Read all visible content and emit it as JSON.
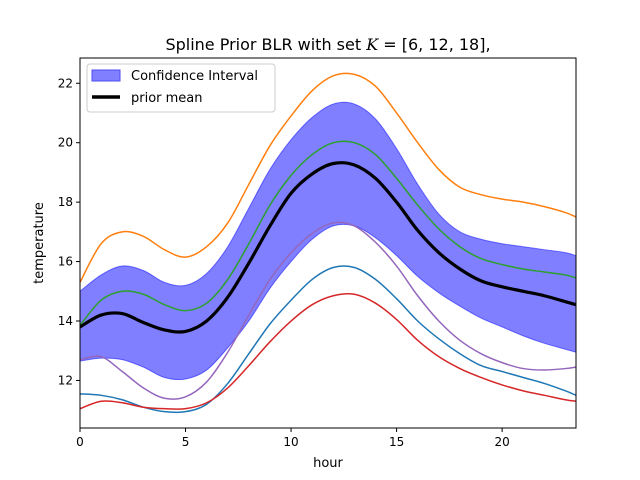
{
  "chart_data": {
    "type": "line",
    "title": "Spline Prior BLR with set K = [6, 12, 18],",
    "title_parts": {
      "prefix": "Spline Prior BLR with set ",
      "math": "K",
      "suffix": " = [6, 12, 18],"
    },
    "xlabel": "hour",
    "ylabel": "temperature",
    "xlim": [
      0,
      23.5
    ],
    "ylim": [
      10.4,
      22.85
    ],
    "xticks": [
      0,
      5,
      10,
      15,
      20
    ],
    "yticks": [
      12,
      14,
      16,
      18,
      20,
      22
    ],
    "grid": false,
    "legend": {
      "placement": "upper-left",
      "entries": [
        {
          "label": "Confidence Interval",
          "kind": "patch",
          "color": "#7f7fff",
          "edge": "#4d4df2"
        },
        {
          "label": "prior mean",
          "kind": "line",
          "color": "#000000"
        }
      ]
    },
    "band": {
      "name": "Confidence Interval",
      "color": "#0000ff",
      "alpha": 0.5,
      "x": [
        0,
        1,
        2,
        3,
        4,
        5,
        6,
        7,
        8,
        9,
        10,
        11,
        12,
        13,
        14,
        15,
        16,
        17,
        18,
        19,
        20,
        21,
        22,
        23,
        23.5
      ],
      "lower": [
        12.65,
        12.75,
        12.7,
        12.45,
        12.1,
        12.05,
        12.35,
        13.1,
        14.0,
        15.1,
        16.0,
        16.75,
        17.2,
        17.2,
        16.8,
        16.2,
        15.5,
        14.95,
        14.5,
        14.1,
        13.8,
        13.5,
        13.25,
        13.05,
        12.95
      ],
      "upper": [
        15.0,
        15.55,
        15.85,
        15.7,
        15.3,
        15.2,
        15.6,
        16.5,
        17.8,
        19.1,
        20.1,
        20.85,
        21.3,
        21.3,
        20.8,
        19.8,
        18.6,
        17.6,
        17.0,
        16.75,
        16.6,
        16.5,
        16.4,
        16.3,
        16.2
      ]
    },
    "series": [
      {
        "color": "#ff7f0e",
        "width": 1.5,
        "x": [
          0,
          1,
          2,
          3,
          4,
          5,
          6,
          7,
          8,
          9,
          10,
          11,
          12,
          13,
          14,
          15,
          16,
          17,
          18,
          19,
          20,
          21,
          22,
          23,
          23.5
        ],
        "values": [
          15.3,
          16.6,
          17.0,
          16.85,
          16.4,
          16.15,
          16.5,
          17.3,
          18.6,
          19.9,
          20.9,
          21.75,
          22.25,
          22.3,
          21.9,
          21.0,
          20.0,
          19.1,
          18.5,
          18.25,
          18.1,
          18.0,
          17.85,
          17.65,
          17.5
        ]
      },
      {
        "color": "#2ca02c",
        "width": 1.5,
        "x": [
          0,
          1,
          2,
          3,
          4,
          5,
          6,
          7,
          8,
          9,
          10,
          11,
          12,
          13,
          14,
          15,
          16,
          17,
          18,
          19,
          20,
          21,
          22,
          23,
          23.5
        ],
        "values": [
          13.85,
          14.7,
          15.0,
          14.9,
          14.55,
          14.35,
          14.6,
          15.4,
          16.6,
          17.9,
          18.9,
          19.6,
          20.0,
          20.0,
          19.6,
          18.8,
          17.9,
          17.1,
          16.5,
          16.1,
          15.9,
          15.75,
          15.65,
          15.55,
          15.45
        ]
      },
      {
        "color": "#9467bd",
        "width": 1.5,
        "x": [
          0,
          1,
          2,
          3,
          4,
          5,
          6,
          7,
          8,
          9,
          10,
          11,
          12,
          13,
          14,
          15,
          16,
          17,
          18,
          19,
          20,
          21,
          22,
          23,
          23.5
        ],
        "values": [
          12.7,
          12.8,
          12.3,
          11.75,
          11.4,
          11.45,
          11.95,
          12.95,
          14.2,
          15.4,
          16.3,
          16.95,
          17.3,
          17.2,
          16.65,
          15.85,
          14.85,
          14.0,
          13.35,
          12.9,
          12.6,
          12.4,
          12.35,
          12.4,
          12.45
        ]
      },
      {
        "color": "#1f77b4",
        "width": 1.5,
        "x": [
          0,
          1,
          2,
          3,
          4,
          5,
          6,
          7,
          8,
          9,
          10,
          11,
          12,
          13,
          14,
          15,
          16,
          17,
          18,
          19,
          20,
          21,
          22,
          23,
          23.5
        ],
        "values": [
          11.55,
          11.5,
          11.35,
          11.1,
          10.95,
          10.95,
          11.2,
          11.9,
          12.9,
          13.9,
          14.7,
          15.4,
          15.8,
          15.8,
          15.4,
          14.75,
          14.0,
          13.4,
          12.9,
          12.5,
          12.3,
          12.1,
          11.9,
          11.65,
          11.5
        ]
      },
      {
        "color": "#d62728",
        "width": 1.5,
        "x": [
          0,
          1,
          2,
          3,
          4,
          5,
          6,
          7,
          8,
          9,
          10,
          11,
          12,
          13,
          14,
          15,
          16,
          17,
          18,
          19,
          20,
          21,
          22,
          23,
          23.5
        ],
        "values": [
          11.05,
          11.3,
          11.25,
          11.1,
          11.05,
          11.05,
          11.25,
          11.75,
          12.5,
          13.3,
          14.0,
          14.55,
          14.85,
          14.9,
          14.6,
          14.05,
          13.35,
          12.8,
          12.4,
          12.1,
          11.85,
          11.65,
          11.5,
          11.35,
          11.3
        ]
      },
      {
        "name": "prior mean",
        "color": "#000000",
        "width": 3.2,
        "x": [
          0,
          1,
          2,
          3,
          4,
          5,
          6,
          7,
          8,
          9,
          10,
          11,
          12,
          13,
          14,
          15,
          16,
          17,
          18,
          19,
          20,
          21,
          22,
          23,
          23.5
        ],
        "values": [
          13.8,
          14.2,
          14.25,
          13.95,
          13.7,
          13.65,
          14.0,
          14.8,
          15.95,
          17.2,
          18.3,
          18.95,
          19.3,
          19.25,
          18.8,
          18.0,
          17.05,
          16.3,
          15.75,
          15.35,
          15.15,
          15.0,
          14.85,
          14.65,
          14.55
        ]
      }
    ]
  }
}
